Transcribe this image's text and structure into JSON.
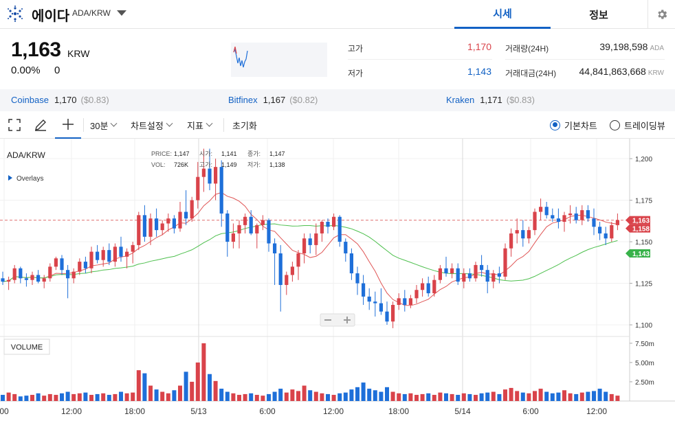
{
  "header": {
    "coin_name": "에이다",
    "pair": "ADA/KRW",
    "tabs": [
      {
        "label": "시세"
      },
      {
        "label": "정보"
      }
    ],
    "icons": {
      "logo": "cardano-logo-icon",
      "dropdown": "caret-down-icon",
      "settings": "gear-icon"
    }
  },
  "summary": {
    "price": "1,163",
    "unit": "KRW",
    "change_rate": "0.00%",
    "change_amount": "0",
    "high_label": "고가",
    "high": "1,170",
    "low_label": "저가",
    "low": "1,143",
    "volume_label": "거래량(24H)",
    "volume": "39,198,598",
    "volume_unit": "ADA",
    "value_label": "거래대금(24H)",
    "value": "44,841,863,668",
    "value_unit": "KRW"
  },
  "exchanges": [
    {
      "name": "Coinbase",
      "price": "1,170",
      "usd": "($0.83)"
    },
    {
      "name": "Bitfinex",
      "price": "1,167",
      "usd": "($0.82)"
    },
    {
      "name": "Kraken",
      "price": "1,171",
      "usd": "($0.83)"
    }
  ],
  "toolbar": {
    "interval": "30분",
    "chart_settings": "차트설정",
    "indicators": "지표",
    "reset": "초기화",
    "basic_chart": "기본차트",
    "tradingview": "트레이딩뷰",
    "icons": [
      "fullscreen-icon",
      "pencil-icon",
      "crosshair-icon"
    ]
  },
  "chart_legend": {
    "symbol": "ADA/KRW",
    "overlays": "Overlays",
    "price_label": "PRICE:",
    "price": "1,147",
    "vol_label": "VOL:",
    "vol": "726K",
    "open_label": "시가:",
    "open": "1,141",
    "close_label": "종가:",
    "close": "1,147",
    "high_label": "고가:",
    "high": "1,149",
    "low_label": "저가:",
    "low": "1,138",
    "volume_panel": "VOLUME"
  },
  "chart_data": {
    "type": "candlestick",
    "y_ticks": [
      "1,200",
      "1,175",
      "1,150",
      "1,125",
      "1,100"
    ],
    "vol_ticks": [
      "7.50m",
      "5.00m",
      "2.50m"
    ],
    "x_ticks": [
      "00",
      "12:00",
      "18:00",
      "5/13",
      "6:00",
      "12:00",
      "18:00",
      "5/14",
      "6:00",
      "12:00"
    ],
    "price_tags": [
      {
        "label": "1,163",
        "color": "#d9434a"
      },
      {
        "label": "1,158",
        "color": "#d9434a"
      },
      {
        "label": "1,143",
        "color": "#38b24a"
      }
    ],
    "candles": [
      [
        1128,
        1132,
        1124,
        1126
      ],
      [
        1126,
        1129,
        1121,
        1127
      ],
      [
        1127,
        1136,
        1125,
        1134
      ],
      [
        1134,
        1135,
        1125,
        1128
      ],
      [
        1128,
        1131,
        1123,
        1127
      ],
      [
        1127,
        1132,
        1124,
        1130
      ],
      [
        1130,
        1133,
        1125,
        1126
      ],
      [
        1126,
        1130,
        1122,
        1128
      ],
      [
        1128,
        1137,
        1126,
        1135
      ],
      [
        1135,
        1141,
        1133,
        1140
      ],
      [
        1140,
        1142,
        1130,
        1133
      ],
      [
        1133,
        1136,
        1116,
        1128
      ],
      [
        1128,
        1134,
        1125,
        1132
      ],
      [
        1132,
        1140,
        1130,
        1138
      ],
      [
        1138,
        1141,
        1131,
        1134
      ],
      [
        1134,
        1147,
        1131,
        1144
      ],
      [
        1144,
        1148,
        1137,
        1139
      ],
      [
        1139,
        1147,
        1135,
        1145
      ],
      [
        1145,
        1149,
        1136,
        1138
      ],
      [
        1138,
        1149,
        1135,
        1147
      ],
      [
        1147,
        1153,
        1138,
        1141
      ],
      [
        1141,
        1146,
        1134,
        1144
      ],
      [
        1144,
        1150,
        1137,
        1148
      ],
      [
        1148,
        1168,
        1145,
        1166
      ],
      [
        1166,
        1172,
        1150,
        1153
      ],
      [
        1153,
        1167,
        1148,
        1164
      ],
      [
        1164,
        1170,
        1153,
        1157
      ],
      [
        1157,
        1163,
        1154,
        1161
      ],
      [
        1161,
        1167,
        1156,
        1164
      ],
      [
        1164,
        1166,
        1155,
        1158
      ],
      [
        1158,
        1174,
        1156,
        1168
      ],
      [
        1168,
        1181,
        1160,
        1164
      ],
      [
        1164,
        1177,
        1162,
        1175
      ],
      [
        1175,
        1198,
        1170,
        1189
      ],
      [
        1189,
        1206,
        1180,
        1194
      ],
      [
        1194,
        1206,
        1181,
        1185
      ],
      [
        1185,
        1200,
        1175,
        1195
      ],
      [
        1195,
        1199,
        1159,
        1167
      ],
      [
        1167,
        1169,
        1141,
        1150
      ],
      [
        1150,
        1161,
        1146,
        1155
      ],
      [
        1155,
        1163,
        1146,
        1160
      ],
      [
        1160,
        1167,
        1155,
        1165
      ],
      [
        1165,
        1169,
        1154,
        1155
      ],
      [
        1155,
        1161,
        1146,
        1160
      ],
      [
        1160,
        1166,
        1157,
        1163
      ],
      [
        1163,
        1164,
        1144,
        1149
      ],
      [
        1149,
        1152,
        1124,
        1143
      ],
      [
        1143,
        1148,
        1108,
        1124
      ],
      [
        1124,
        1132,
        1118,
        1130
      ],
      [
        1130,
        1138,
        1126,
        1135
      ],
      [
        1135,
        1145,
        1127,
        1143
      ],
      [
        1143,
        1155,
        1137,
        1152
      ],
      [
        1152,
        1155,
        1143,
        1148
      ],
      [
        1148,
        1161,
        1142,
        1155
      ],
      [
        1155,
        1163,
        1150,
        1162
      ],
      [
        1162,
        1164,
        1155,
        1159
      ],
      [
        1159,
        1167,
        1157,
        1165
      ],
      [
        1165,
        1166,
        1147,
        1150
      ],
      [
        1150,
        1152,
        1138,
        1143
      ],
      [
        1143,
        1146,
        1127,
        1131
      ],
      [
        1131,
        1135,
        1118,
        1125
      ],
      [
        1125,
        1130,
        1112,
        1117
      ],
      [
        1117,
        1122,
        1109,
        1114
      ],
      [
        1114,
        1120,
        1105,
        1113
      ],
      [
        1113,
        1122,
        1106,
        1108
      ],
      [
        1108,
        1114,
        1100,
        1102
      ],
      [
        1102,
        1114,
        1098,
        1112
      ],
      [
        1112,
        1119,
        1109,
        1116
      ],
      [
        1116,
        1121,
        1108,
        1112
      ],
      [
        1112,
        1118,
        1110,
        1116
      ],
      [
        1116,
        1124,
        1113,
        1121
      ],
      [
        1121,
        1128,
        1117,
        1125
      ],
      [
        1125,
        1129,
        1117,
        1119
      ],
      [
        1119,
        1130,
        1117,
        1127
      ],
      [
        1127,
        1136,
        1125,
        1134
      ],
      [
        1134,
        1141,
        1129,
        1131
      ],
      [
        1131,
        1137,
        1128,
        1134
      ],
      [
        1134,
        1137,
        1124,
        1126
      ],
      [
        1126,
        1134,
        1122,
        1131
      ],
      [
        1131,
        1134,
        1126,
        1128
      ],
      [
        1128,
        1138,
        1126,
        1136
      ],
      [
        1136,
        1142,
        1129,
        1133
      ],
      [
        1133,
        1136,
        1119,
        1126
      ],
      [
        1126,
        1133,
        1122,
        1131
      ],
      [
        1131,
        1135,
        1125,
        1129
      ],
      [
        1129,
        1149,
        1127,
        1146
      ],
      [
        1146,
        1158,
        1141,
        1155
      ],
      [
        1155,
        1164,
        1149,
        1157
      ],
      [
        1157,
        1163,
        1147,
        1152
      ],
      [
        1152,
        1159,
        1149,
        1157
      ],
      [
        1157,
        1170,
        1154,
        1168
      ],
      [
        1168,
        1176,
        1163,
        1171
      ],
      [
        1171,
        1174,
        1164,
        1166
      ],
      [
        1166,
        1170,
        1162,
        1164
      ],
      [
        1164,
        1170,
        1158,
        1162
      ],
      [
        1162,
        1168,
        1156,
        1166
      ],
      [
        1166,
        1172,
        1161,
        1167
      ],
      [
        1167,
        1171,
        1161,
        1163
      ],
      [
        1163,
        1172,
        1160,
        1169
      ],
      [
        1169,
        1172,
        1162,
        1164
      ],
      [
        1164,
        1170,
        1154,
        1159
      ],
      [
        1159,
        1162,
        1151,
        1155
      ],
      [
        1155,
        1159,
        1148,
        1152
      ],
      [
        1152,
        1162,
        1150,
        1160
      ],
      [
        1160,
        1167,
        1157,
        1163
      ]
    ],
    "volumes": [
      0.8,
      1.1,
      0.9,
      0.6,
      0.7,
      0.8,
      1.0,
      0.7,
      0.9,
      0.8,
      1.0,
      1.2,
      0.9,
      1.0,
      1.1,
      0.8,
      0.9,
      1.0,
      0.8,
      0.9,
      1.2,
      1.0,
      1.1,
      4.0,
      3.6,
      2.0,
      1.5,
      1.2,
      1.0,
      1.4,
      2.0,
      3.8,
      2.5,
      5.0,
      7.5,
      3.5,
      2.6,
      1.6,
      1.2,
      1.0,
      0.8,
      0.9,
      1.0,
      0.8,
      0.7,
      0.9,
      1.2,
      1.6,
      1.1,
      1.5,
      1.3,
      2.0,
      1.4,
      1.2,
      1.0,
      0.9,
      0.8,
      1.0,
      1.1,
      1.5,
      1.8,
      2.4,
      1.6,
      1.4,
      1.2,
      1.8,
      1.2,
      1.0,
      0.9,
      1.0,
      0.8,
      0.9,
      1.0,
      0.8,
      1.1,
      1.0,
      0.9,
      0.8,
      1.0,
      0.9,
      0.8,
      1.0,
      1.1,
      1.2,
      0.9,
      1.5,
      1.7,
      1.3,
      1.1,
      1.0,
      1.3,
      1.6,
      1.2,
      1.0,
      1.1,
      1.4,
      1.0,
      0.9,
      1.1,
      1.2,
      1.3,
      1.6,
      1.2,
      0.9,
      0.7
    ],
    "colors": {
      "up": "#d9434a",
      "down": "#1e6fd9",
      "ma_short": "#e05656",
      "ma_long": "#4cbf4c"
    }
  }
}
